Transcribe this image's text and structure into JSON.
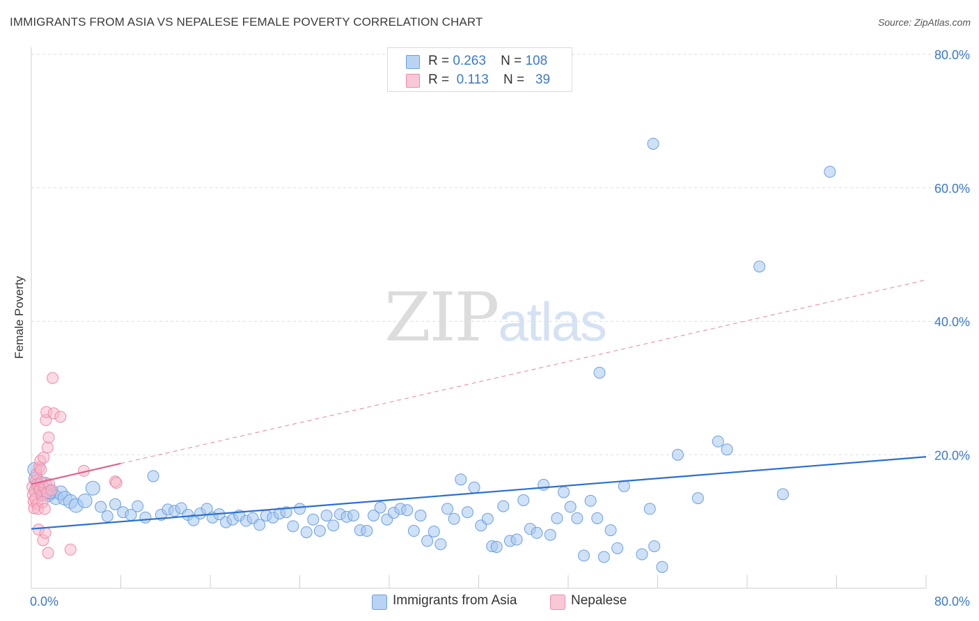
{
  "title": "IMMIGRANTS FROM ASIA VS NEPALESE FEMALE POVERTY CORRELATION CHART",
  "source": "Source: ZipAtlas.com",
  "watermark": {
    "part1": "ZIP",
    "part2": "atlas"
  },
  "legend_top": [
    {
      "r_label": "R =",
      "r_value": "0.263",
      "n_label": "N =",
      "n_value": "108"
    },
    {
      "r_label": "R =",
      "r_value": "0.113",
      "n_label": "N =",
      "n_value": "39"
    }
  ],
  "legend_bottom": [
    {
      "label": "Immigrants from Asia"
    },
    {
      "label": "Nepalese"
    }
  ],
  "colors": {
    "blue_fill": "#a8c8f0",
    "blue_stroke": "#6a9fe0",
    "blue_line": "#2a6fd1",
    "pink_fill": "#f7b6c8",
    "pink_stroke": "#ee8aa8",
    "pink_line": "#e0628e",
    "axis_label": "#3a78cf",
    "grid": "#dedede"
  },
  "chart_data": {
    "type": "scatter",
    "title": "IMMIGRANTS FROM ASIA VS NEPALESE FEMALE POVERTY CORRELATION CHART",
    "xlabel": "",
    "ylabel": "Female Poverty",
    "xlim": [
      0,
      80
    ],
    "ylim": [
      0,
      80
    ],
    "x_tick_labels": [
      "0.0%",
      "80.0%"
    ],
    "y_tick_labels": [
      "20.0%",
      "40.0%",
      "60.0%",
      "80.0%"
    ],
    "y_ticks": [
      20,
      40,
      60,
      80
    ],
    "grid": true,
    "series": [
      {
        "name": "Immigrants from Asia",
        "r": 0.263,
        "n": 108,
        "trend": {
          "x": [
            0,
            80
          ],
          "y": [
            8.9,
            19.7
          ],
          "style": "solid"
        },
        "points": [
          [
            0.3,
            17.8
          ],
          [
            0.4,
            16.4
          ],
          [
            0.6,
            15.2
          ],
          [
            0.8,
            14.7
          ],
          [
            1.0,
            14.2
          ],
          [
            1.2,
            15.6
          ],
          [
            1.5,
            14.0
          ],
          [
            1.8,
            14.4
          ],
          [
            2.2,
            13.6
          ],
          [
            2.6,
            14.3
          ],
          [
            3.0,
            13.5
          ],
          [
            3.5,
            13.0
          ],
          [
            4.0,
            12.4
          ],
          [
            4.8,
            13.1
          ],
          [
            5.5,
            15.0
          ],
          [
            6.2,
            12.2
          ],
          [
            6.8,
            10.8
          ],
          [
            7.5,
            12.6
          ],
          [
            8.2,
            11.4
          ],
          [
            8.9,
            11.0
          ],
          [
            9.5,
            12.3
          ],
          [
            10.2,
            10.6
          ],
          [
            10.9,
            16.8
          ],
          [
            11.6,
            11.0
          ],
          [
            12.2,
            11.8
          ],
          [
            12.8,
            11.6
          ],
          [
            13.4,
            12.0
          ],
          [
            14.0,
            11.0
          ],
          [
            14.5,
            10.2
          ],
          [
            15.1,
            11.2
          ],
          [
            15.7,
            11.9
          ],
          [
            16.2,
            10.6
          ],
          [
            16.8,
            11.1
          ],
          [
            17.4,
            9.9
          ],
          [
            18.0,
            10.3
          ],
          [
            18.6,
            10.9
          ],
          [
            19.2,
            10.1
          ],
          [
            19.8,
            10.5
          ],
          [
            20.4,
            9.5
          ],
          [
            21.0,
            10.9
          ],
          [
            21.6,
            10.6
          ],
          [
            22.2,
            11.2
          ],
          [
            22.8,
            11.4
          ],
          [
            23.4,
            9.3
          ],
          [
            24.0,
            11.9
          ],
          [
            24.6,
            8.4
          ],
          [
            25.2,
            10.3
          ],
          [
            25.8,
            8.6
          ],
          [
            26.4,
            10.9
          ],
          [
            27.0,
            9.4
          ],
          [
            27.6,
            11.1
          ],
          [
            28.2,
            10.7
          ],
          [
            28.8,
            10.9
          ],
          [
            29.4,
            8.7
          ],
          [
            30.0,
            8.6
          ],
          [
            30.6,
            10.9
          ],
          [
            31.2,
            12.1
          ],
          [
            31.8,
            10.3
          ],
          [
            32.4,
            11.3
          ],
          [
            33.0,
            11.9
          ],
          [
            33.6,
            11.7
          ],
          [
            34.2,
            8.6
          ],
          [
            34.8,
            10.9
          ],
          [
            35.4,
            7.1
          ],
          [
            36.0,
            8.5
          ],
          [
            36.6,
            6.6
          ],
          [
            37.2,
            11.9
          ],
          [
            37.8,
            10.4
          ],
          [
            38.4,
            16.3
          ],
          [
            39.0,
            11.4
          ],
          [
            39.6,
            15.1
          ],
          [
            40.2,
            9.4
          ],
          [
            40.8,
            10.4
          ],
          [
            41.2,
            6.3
          ],
          [
            41.6,
            6.2
          ],
          [
            42.2,
            12.3
          ],
          [
            42.8,
            7.1
          ],
          [
            43.4,
            7.3
          ],
          [
            44.0,
            13.2
          ],
          [
            44.6,
            8.9
          ],
          [
            45.2,
            8.3
          ],
          [
            45.8,
            15.5
          ],
          [
            46.4,
            8.0
          ],
          [
            47.0,
            10.5
          ],
          [
            47.6,
            14.4
          ],
          [
            48.2,
            12.2
          ],
          [
            48.8,
            10.5
          ],
          [
            49.4,
            4.9
          ],
          [
            50.0,
            13.1
          ],
          [
            50.6,
            10.5
          ],
          [
            51.2,
            4.7
          ],
          [
            51.8,
            8.7
          ],
          [
            52.4,
            6.0
          ],
          [
            53.0,
            15.3
          ],
          [
            54.6,
            5.1
          ],
          [
            55.3,
            11.9
          ],
          [
            55.7,
            6.3
          ],
          [
            56.4,
            3.2
          ],
          [
            57.8,
            20.0
          ],
          [
            59.6,
            13.5
          ],
          [
            61.4,
            22.0
          ],
          [
            62.2,
            20.8
          ],
          [
            65.1,
            48.2
          ],
          [
            67.2,
            14.1
          ],
          [
            50.8,
            32.3
          ],
          [
            55.6,
            66.6
          ],
          [
            71.4,
            62.4
          ],
          [
            1.6,
            14.4
          ]
        ]
      },
      {
        "name": "Nepalese",
        "r": 0.113,
        "n": 39,
        "trend": {
          "x": [
            0,
            8
          ],
          "y": [
            15.6,
            18.7
          ],
          "style": "solid",
          "extended": {
            "x": [
              8,
              80
            ],
            "y": [
              18.7,
              46.2
            ],
            "style": "dashed"
          }
        },
        "points": [
          [
            0.1,
            15.2
          ],
          [
            0.15,
            14.0
          ],
          [
            0.2,
            13.0
          ],
          [
            0.25,
            12.0
          ],
          [
            0.3,
            14.6
          ],
          [
            0.35,
            13.4
          ],
          [
            0.4,
            16.1
          ],
          [
            0.45,
            17.1
          ],
          [
            0.5,
            15.6
          ],
          [
            0.55,
            12.6
          ],
          [
            0.6,
            11.9
          ],
          [
            0.65,
            8.8
          ],
          [
            0.7,
            18.1
          ],
          [
            0.75,
            14.8
          ],
          [
            0.8,
            19.1
          ],
          [
            0.85,
            17.8
          ],
          [
            0.9,
            15.9
          ],
          [
            0.95,
            13.9
          ],
          [
            1.0,
            12.9
          ],
          [
            1.05,
            7.2
          ],
          [
            1.1,
            19.6
          ],
          [
            1.15,
            15.1
          ],
          [
            1.2,
            11.9
          ],
          [
            1.25,
            8.3
          ],
          [
            1.3,
            25.2
          ],
          [
            1.35,
            26.4
          ],
          [
            1.4,
            14.3
          ],
          [
            1.45,
            21.1
          ],
          [
            1.5,
            5.3
          ],
          [
            1.55,
            22.6
          ],
          [
            1.6,
            15.6
          ],
          [
            1.8,
            14.7
          ],
          [
            1.9,
            31.5
          ],
          [
            2.0,
            26.2
          ],
          [
            2.6,
            25.7
          ],
          [
            3.5,
            5.8
          ],
          [
            4.7,
            17.6
          ],
          [
            7.5,
            16.0
          ],
          [
            7.6,
            15.8
          ]
        ]
      }
    ]
  }
}
